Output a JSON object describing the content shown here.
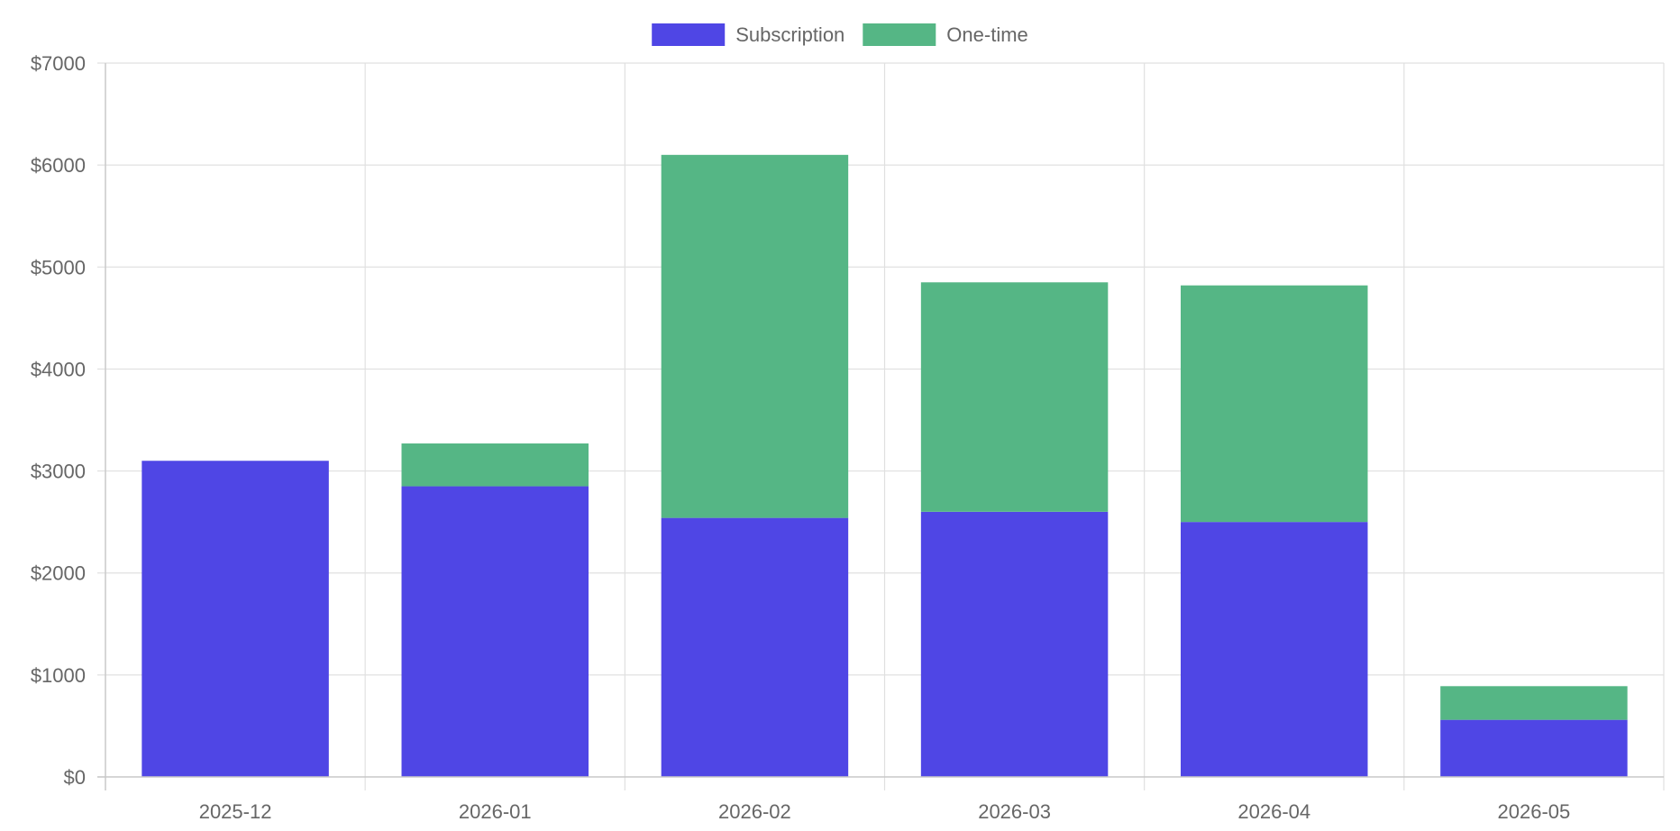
{
  "chart_data": {
    "type": "bar",
    "stacked": true,
    "categories": [
      "2025-12",
      "2026-01",
      "2026-02",
      "2026-03",
      "2026-04",
      "2026-05"
    ],
    "series": [
      {
        "name": "Subscription",
        "color": "#4f46e5",
        "values": [
          3100,
          2850,
          2540,
          2600,
          2500,
          560
        ]
      },
      {
        "name": "One-time",
        "color": "#55b685",
        "values": [
          0,
          420,
          3560,
          2250,
          2320,
          330
        ]
      }
    ],
    "ylim": [
      0,
      7000
    ],
    "yticks": [
      0,
      1000,
      2000,
      3000,
      4000,
      5000,
      6000,
      7000
    ],
    "y_tick_prefix": "$",
    "xlabel": "",
    "ylabel": "",
    "title": "",
    "grid": true,
    "legend_position": "top-center"
  }
}
